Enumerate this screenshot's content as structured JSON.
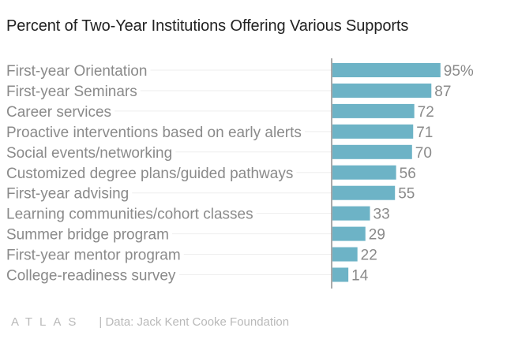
{
  "title": "Percent of Two-Year Institutions Offering Various Supports",
  "footer": {
    "logo": "ATLAS",
    "source": "| Data: Jack Kent Cooke Foundation"
  },
  "colors": {
    "bar": "#6db3c6",
    "label": "#8a8a8a",
    "value": "#8a8a8a",
    "axis": "#555555",
    "gridline": "#eeeeee"
  },
  "chart_data": {
    "type": "bar",
    "orientation": "horizontal",
    "categories": [
      "First-year Orientation",
      "First-year Seminars",
      "Career services",
      "Proactive interventions based on early alerts",
      "Social events/networking",
      "Customized degree plans/guided pathways",
      "First-year advising",
      "Learning communities/cohort classes",
      "Summer bridge program",
      "First-year mentor program",
      "College-readiness survey"
    ],
    "values": [
      95,
      87,
      72,
      71,
      70,
      56,
      55,
      33,
      29,
      22,
      14
    ],
    "value_labels": [
      "95%",
      "87",
      "72",
      "71",
      "70",
      "56",
      "55",
      "33",
      "29",
      "22",
      "14"
    ],
    "xlim": [
      0,
      100
    ],
    "grid": false
  }
}
